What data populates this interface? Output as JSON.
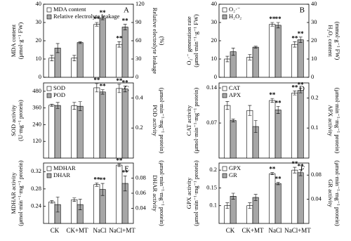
{
  "chart_data": [
    {
      "type": "bar",
      "label": "A",
      "ylabel": [
        "MDA content",
        "(μmol·g⁻¹ FW)"
      ],
      "y2label": [
        "Relative electrolyte leakage",
        "(%)"
      ],
      "ylim": [
        0,
        40
      ],
      "yticks": [
        0,
        10,
        20,
        30,
        40
      ],
      "y2lim": [
        0,
        120
      ],
      "y2ticks": [
        0,
        30,
        60,
        90,
        120
      ],
      "series": [
        {
          "name": "MDA content",
          "color": "#ffffff",
          "values": [
            10.5,
            10.5,
            29,
            18
          ],
          "errors": [
            1.5,
            1.5,
            1,
            1.5
          ],
          "sig": [
            null,
            null,
            "**",
            "**"
          ]
        },
        {
          "name": "Relative electrolyte leakage",
          "color": "#a6a6a6",
          "axis": "y2",
          "values": [
            48,
            57,
            97.5,
            82.5
          ],
          "errors": [
            7.5,
            1.5,
            3,
            4.5
          ],
          "sig": [
            null,
            null,
            "**",
            "**"
          ]
        }
      ]
    },
    {
      "type": "bar",
      "label": "B",
      "ylabel": [
        "O₂·⁻ generation rate",
        "(μmol·min⁻¹·g⁻¹ FW)"
      ],
      "y2label": [
        "H₂O₂ content",
        "(mmol·g⁻¹ FW)"
      ],
      "ylim": [
        0,
        40
      ],
      "yticks": [
        0,
        10,
        20,
        30,
        40
      ],
      "y2lim": [
        0,
        40
      ],
      "y2ticks": [
        0,
        10,
        20,
        30,
        40
      ],
      "series": [
        {
          "name": "O₂·⁻",
          "color": "#ffffff",
          "values": [
            10,
            11,
            29,
            18
          ],
          "errors": [
            1.5,
            1.5,
            1,
            1.5
          ],
          "sig": [
            null,
            null,
            "**",
            "**"
          ]
        },
        {
          "name": "H₂O₂",
          "color": "#a6a6a6",
          "axis": "y2",
          "values": [
            14,
            16.5,
            28.5,
            20.5
          ],
          "errors": [
            2,
            0.5,
            1.5,
            1.5
          ],
          "sig": [
            null,
            null,
            "**",
            "**"
          ]
        }
      ]
    },
    {
      "type": "bar",
      "label": "C",
      "ylabel": [
        "SOD activity",
        "(U·mg⁻¹ protein)"
      ],
      "y2label": [
        "POD activity",
        "(μmol·min⁻¹·mg⁻¹ protein)"
      ],
      "ylim": [
        0,
        540
      ],
      "yticks": [
        120,
        240,
        360,
        480
      ],
      "y2lim": [
        0,
        0.5
      ],
      "y2ticks": [
        0.2,
        0.4
      ],
      "series": [
        {
          "name": "SOD",
          "color": "#ffffff",
          "values": [
            380,
            375,
            505,
            500
          ],
          "errors": [
            8,
            25,
            30,
            30
          ],
          "sig": [
            null,
            null,
            "**",
            "**"
          ]
        },
        {
          "name": "POD",
          "color": "#a6a6a6",
          "axis": "y2",
          "values": [
            0.35,
            0.345,
            0.44,
            0.46
          ],
          "errors": [
            0.02,
            0.03,
            0.015,
            0.02
          ],
          "sig": [
            null,
            null,
            "**",
            "**"
          ]
        }
      ]
    },
    {
      "type": "bar",
      "label": "D",
      "ylabel": [
        "CAT activity",
        "(μmol·min⁻¹·mg⁻¹ protein)"
      ],
      "y2label": [
        "APX activity",
        "(μmol·min⁻¹·mg⁻¹ protein)"
      ],
      "ylim": [
        0,
        0.15
      ],
      "yticks": [
        0.07,
        0.14
      ],
      "y2lim": [
        0,
        0.25
      ],
      "y2ticks": [
        0.1,
        0.2
      ],
      "series": [
        {
          "name": "CAT",
          "color": "#ffffff",
          "values": [
            0.105,
            0.095,
            0.115,
            0.13
          ],
          "errors": [
            0.008,
            0.01,
            0.004,
            0.004
          ],
          "sig": [
            null,
            null,
            "**",
            "**"
          ]
        },
        {
          "name": "APX",
          "color": "#a6a6a6",
          "axis": "y2",
          "values": [
            0.125,
            0.105,
            0.16,
            0.225
          ],
          "errors": [
            0.005,
            0.02,
            0.012,
            0.008
          ],
          "sig": [
            null,
            null,
            "**",
            "**"
          ]
        }
      ]
    },
    {
      "type": "bar",
      "label": "E",
      "ylabel": [
        "MDHAR activity",
        "(μmol·min⁻¹·mg⁻¹ protein)"
      ],
      "y2label": [
        "DHAR activity",
        "(μmol·min⁻¹·mg⁻¹ protein)"
      ],
      "categories": [
        "CK",
        "CK+MT",
        "NaCl",
        "NaCl+MT"
      ],
      "ylim": [
        0.2,
        0.34
      ],
      "yticks": [
        0.24,
        0.28,
        0.32
      ],
      "y2lim": [
        0.02,
        0.1
      ],
      "y2ticks": [
        0.04,
        0.06,
        0.08
      ],
      "series": [
        {
          "name": "MDHAR",
          "color": "#ffffff",
          "values": [
            0.25,
            0.255,
            0.29,
            0.335
          ],
          "errors": [
            0.003,
            0.004,
            0.004,
            0.003
          ],
          "sig": [
            null,
            null,
            "**",
            "**"
          ]
        },
        {
          "name": "DHAR",
          "color": "#a6a6a6",
          "axis": "y2",
          "values": [
            0.045,
            0.045,
            0.065,
            0.073
          ],
          "errors": [
            0.01,
            0.007,
            0.008,
            0.01
          ],
          "sig": [
            null,
            null,
            "**",
            "**"
          ]
        }
      ]
    },
    {
      "type": "bar",
      "label": "F",
      "ylabel": [
        "GPX activity",
        "(μmol·min⁻¹·mg⁻¹ protein)"
      ],
      "y2label": [
        "GR activity",
        "(μmol·min⁻¹·mg⁻¹ protein)"
      ],
      "categories": [
        "CK",
        "CK+MT",
        "NaCl",
        "NaCl+MT"
      ],
      "ylim": [
        0.05,
        0.22
      ],
      "yticks": [
        0.1,
        0.15,
        0.2
      ],
      "y2lim": [
        0,
        0.1
      ],
      "y2ticks": [
        0.04,
        0.08
      ],
      "series": [
        {
          "name": "GPX",
          "color": "#ffffff",
          "values": [
            0.1,
            0.1,
            0.19,
            0.2
          ],
          "errors": [
            0.008,
            0.008,
            0.003,
            0.008
          ],
          "sig": [
            null,
            null,
            "**",
            "**"
          ]
        },
        {
          "name": "GR",
          "color": "#a6a6a6",
          "axis": "y2",
          "values": [
            0.045,
            0.043,
            0.066,
            0.084
          ],
          "errors": [
            0.005,
            0.005,
            0.002,
            0.005
          ],
          "sig": [
            null,
            null,
            "**",
            "**"
          ]
        }
      ]
    }
  ]
}
